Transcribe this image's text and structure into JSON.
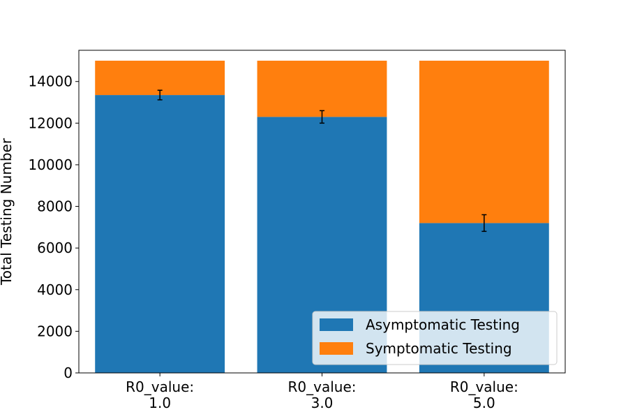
{
  "chart_data": {
    "type": "bar",
    "stacked": true,
    "categories": [
      [
        "R0_value:",
        "1.0"
      ],
      [
        "R0_value:",
        "3.0"
      ],
      [
        "R0_value:",
        "5.0"
      ]
    ],
    "series": [
      {
        "name": "Asymptomatic Testing",
        "color": "#1f77b4",
        "values": [
          13350,
          12300,
          7200
        ]
      },
      {
        "name": "Symptomatic Testing",
        "color": "#ff7f0e",
        "values": [
          1650,
          2700,
          7800
        ]
      }
    ],
    "error_bars": {
      "series": "Asymptomatic Testing",
      "center": [
        13350,
        12300,
        7200
      ],
      "err": [
        230,
        300,
        400
      ]
    },
    "xlabel": "",
    "ylabel": "Total Testing Number",
    "ylim": [
      0,
      15500
    ],
    "yticks": [
      0,
      2000,
      4000,
      6000,
      8000,
      10000,
      12000,
      14000
    ],
    "grid": false,
    "legend_position": "lower-right"
  }
}
